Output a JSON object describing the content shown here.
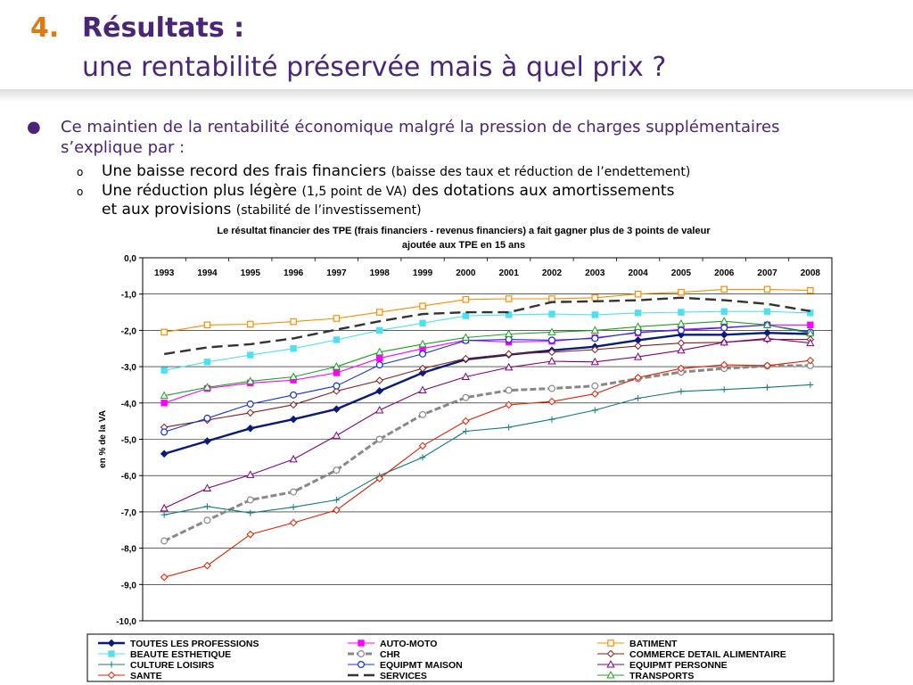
{
  "slide": {
    "number": "4.",
    "title": "Résultats :",
    "subtitle": "une rentabilité préservée mais à quel prix ?",
    "bullet": "Ce maintien de la rentabilité économique malgré la pression de charges supplémentaires s’explique par :",
    "sub_bullets": [
      {
        "main": "Une baisse record des frais financiers ",
        "detail": "(baisse des taux et réduction de l’endettement)"
      },
      {
        "main": "Une réduction plus légère ",
        "detail": "(1,5 point de VA)",
        "main2": " des dotations aux amortissements",
        "main3": "et aux provisions ",
        "detail2": "(stabilité de l’investissement)"
      }
    ]
  },
  "chart_data": {
    "type": "line",
    "title": "Le résultat financier des TPE (frais financiers - revenus financiers) a fait gagner plus de 3 points de valeur ajoutée aux TPE en 15 ans",
    "title_lines": [
      "Le résultat financier des TPE (frais financiers - revenus financiers) a fait gagner plus de 3 points de valeur",
      "ajoutée aux TPE en 15 ans"
    ],
    "ylabel": "en % de la VA",
    "xlabel": "",
    "ylim": [
      -10,
      0
    ],
    "yticks": [
      "0,0",
      "-1,0",
      "-2,0",
      "-3,0",
      "-4,0",
      "-5,0",
      "-6,0",
      "-7,0",
      "-8,0",
      "-9,0",
      "-10,0"
    ],
    "x_axis_position": "top",
    "grid": true,
    "legend_position": "bottom",
    "categories": [
      "1993",
      "1994",
      "1995",
      "1996",
      "1997",
      "1998",
      "1999",
      "2000",
      "2001",
      "2002",
      "2003",
      "2004",
      "2005",
      "2006",
      "2007",
      "2008"
    ],
    "series": [
      {
        "name": "TOUTES LES PROFESSIONS",
        "color": "#0a1a78",
        "marker": "diamond",
        "style": "bold",
        "values": [
          -5.4,
          -5.05,
          -4.7,
          -4.45,
          -4.17,
          -3.67,
          -3.17,
          -2.8,
          -2.67,
          -2.55,
          -2.45,
          -2.27,
          -2.12,
          -2.12,
          -2.07,
          -2.1
        ]
      },
      {
        "name": "AUTO-MOTO",
        "color": "#ff00ff",
        "marker": "square",
        "style": "thin",
        "values": [
          -4.0,
          -3.6,
          -3.45,
          -3.37,
          -3.17,
          -2.77,
          -2.5,
          -2.27,
          -2.32,
          -2.3,
          -2.2,
          -2.07,
          -1.97,
          -1.92,
          -1.85,
          -1.85
        ]
      },
      {
        "name": "BATIMENT",
        "color": "#ff8c00",
        "marker": "square-open",
        "style": "thin",
        "values": [
          -2.05,
          -1.85,
          -1.83,
          -1.76,
          -1.67,
          -1.5,
          -1.33,
          -1.15,
          -1.13,
          -1.13,
          -1.1,
          -1.0,
          -0.95,
          -0.87,
          -0.87,
          -0.9
        ]
      },
      {
        "name": "BEAUTE ESTHETIQUE",
        "color": "#4fe0f0",
        "marker": "square",
        "style": "thin",
        "values": [
          -3.1,
          -2.87,
          -2.68,
          -2.5,
          -2.26,
          -2.0,
          -1.8,
          -1.6,
          -1.57,
          -1.55,
          -1.57,
          -1.52,
          -1.5,
          -1.48,
          -1.48,
          -1.52
        ]
      },
      {
        "name": "CHR",
        "color": "#888888",
        "marker": "circle-open",
        "style": "dash-grey",
        "values": [
          -7.8,
          -7.23,
          -6.67,
          -6.45,
          -5.85,
          -5.0,
          -4.32,
          -3.85,
          -3.65,
          -3.6,
          -3.53,
          -3.33,
          -3.15,
          -3.05,
          -2.98,
          -2.97
        ]
      },
      {
        "name": "COMMERCE DETAIL ALIMENTAIRE",
        "color": "#8b1a1a",
        "marker": "diamond-open",
        "style": "thin",
        "values": [
          -4.67,
          -4.47,
          -4.27,
          -4.05,
          -3.67,
          -3.38,
          -3.05,
          -2.78,
          -2.65,
          -2.6,
          -2.53,
          -2.43,
          -2.35,
          -2.33,
          -2.25,
          -2.25
        ]
      },
      {
        "name": "CULTURE LOISIRS",
        "color": "#107a80",
        "marker": "plus",
        "style": "thin",
        "values": [
          -7.08,
          -6.85,
          -7.03,
          -6.87,
          -6.67,
          -6.0,
          -5.5,
          -4.78,
          -4.67,
          -4.45,
          -4.2,
          -3.87,
          -3.68,
          -3.63,
          -3.57,
          -3.5
        ]
      },
      {
        "name": "EQUIPMT MAISON",
        "color": "#1030e0",
        "marker": "circle-open",
        "style": "thin",
        "values": [
          -4.8,
          -4.42,
          -4.03,
          -3.78,
          -3.53,
          -2.95,
          -2.65,
          -2.28,
          -2.25,
          -2.27,
          -2.22,
          -2.05,
          -2.0,
          -1.93,
          -1.85,
          -2.05
        ]
      },
      {
        "name": "EQUIPMT PERSONNE",
        "color": "#800080",
        "marker": "triangle-open",
        "style": "thin",
        "values": [
          -6.9,
          -6.35,
          -5.98,
          -5.55,
          -4.9,
          -4.2,
          -3.65,
          -3.28,
          -3.02,
          -2.85,
          -2.87,
          -2.73,
          -2.55,
          -2.33,
          -2.22,
          -2.35
        ]
      },
      {
        "name": "SANTE",
        "color": "#e02000",
        "marker": "diamond-open",
        "style": "thin",
        "values": [
          -8.8,
          -8.48,
          -7.62,
          -7.3,
          -6.95,
          -6.08,
          -5.18,
          -4.5,
          -4.05,
          -3.96,
          -3.75,
          -3.3,
          -3.05,
          -2.95,
          -2.97,
          -2.83
        ]
      },
      {
        "name": "SERVICES",
        "color": "#333333",
        "marker": "none",
        "style": "dash",
        "values": [
          -2.65,
          -2.47,
          -2.38,
          -2.22,
          -1.98,
          -1.75,
          -1.55,
          -1.5,
          -1.5,
          -1.22,
          -1.2,
          -1.17,
          -1.1,
          -1.17,
          -1.27,
          -1.47
        ]
      },
      {
        "name": "TRANSPORTS",
        "color": "#20a020",
        "marker": "triangle-open",
        "style": "thin",
        "values": [
          -3.8,
          -3.57,
          -3.4,
          -3.28,
          -3.0,
          -2.6,
          -2.38,
          -2.2,
          -2.1,
          -2.05,
          -2.0,
          -1.9,
          -1.82,
          -1.75,
          -1.85,
          -2.08
        ]
      }
    ]
  }
}
